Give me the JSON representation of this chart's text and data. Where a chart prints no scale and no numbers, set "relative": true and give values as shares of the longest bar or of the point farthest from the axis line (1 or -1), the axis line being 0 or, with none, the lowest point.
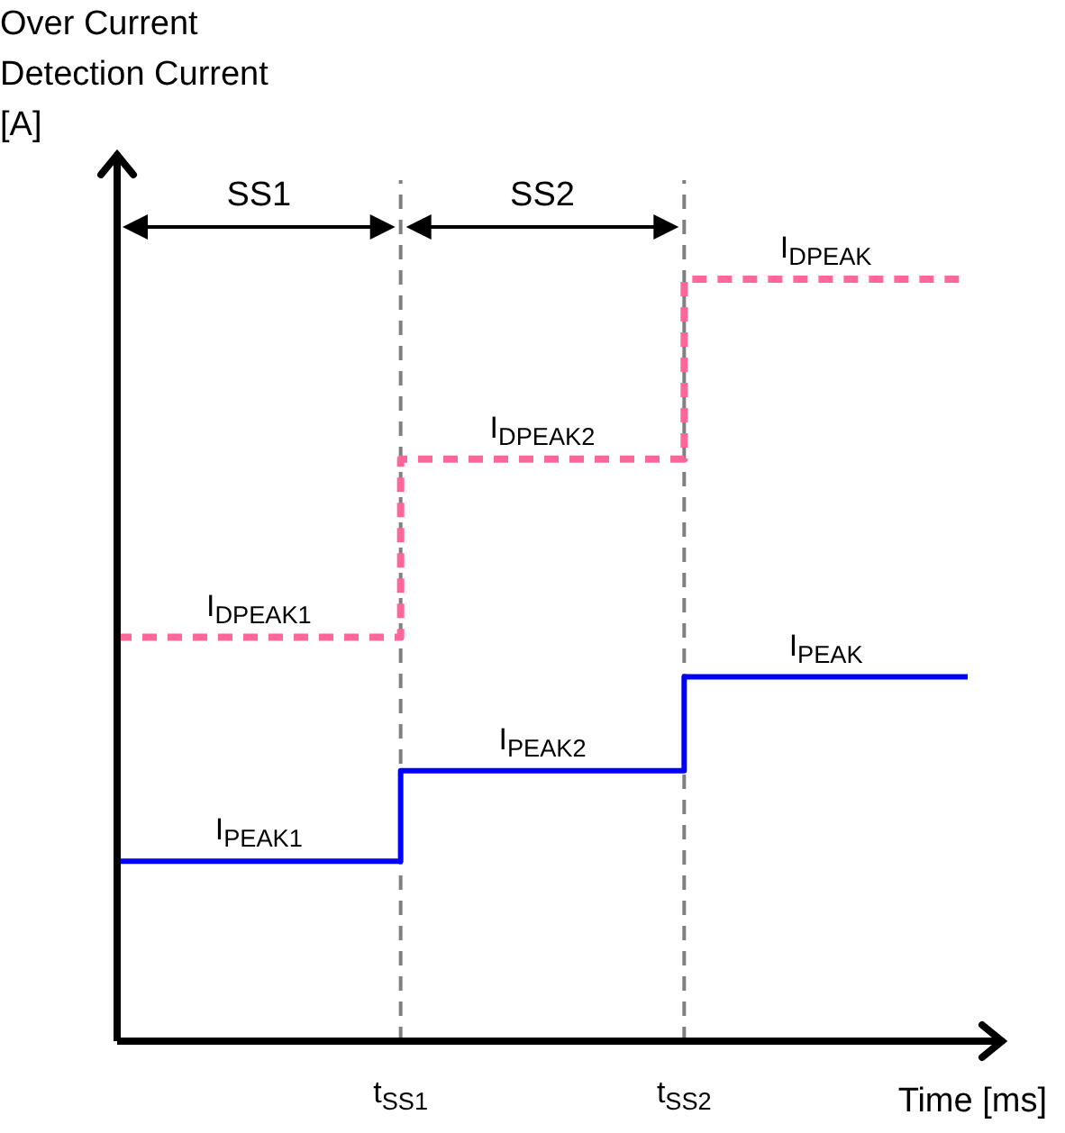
{
  "chart_data": {
    "type": "step",
    "relative": true,
    "xlabel": "Time [ms]",
    "ylabel": "Over Current\nDetection Current\n[A]",
    "categories": [
      null,
      "t$_{SS1}$",
      "t$_{SS2}$",
      null
    ],
    "series": [
      {
        "color": "#ff6699",
        "line_style": "dashed",
        "values": [
          0.53,
          0.764,
          1,
          1
        ]
      },
      {
        "color": "#0000ff",
        "line_style": "solid",
        "values": [
          0.236,
          0.355,
          0.478,
          0.478
        ]
      }
    ],
    "ref_lines": [
      {
        "axis": "x",
        "value": "t$_{SS1}$",
        "color": "#808080",
        "line_style": "dashed"
      },
      {
        "axis": "x",
        "value": "t$_{SS2}$",
        "color": "#808080",
        "line_style": "dashed"
      }
    ],
    "annotations": [
      "SS1",
      "SS2",
      {
        "text": "I$_{DPEAK1}$",
        "y": 0.53
      },
      {
        "text": "I$_{DPEAK2}$",
        "y": 0.764
      },
      {
        "text": "I$_{DPEAK}$",
        "y": 1
      },
      {
        "text": "I$_{PEAK1}$",
        "y": 0.236
      },
      {
        "text": "I$_{PEAK2}$",
        "y": 0.355
      },
      {
        "text": "I$_{PEAK}$",
        "y": 0.478
      }
    ],
    "grid": false,
    "legend": false,
    "marker": "none"
  }
}
